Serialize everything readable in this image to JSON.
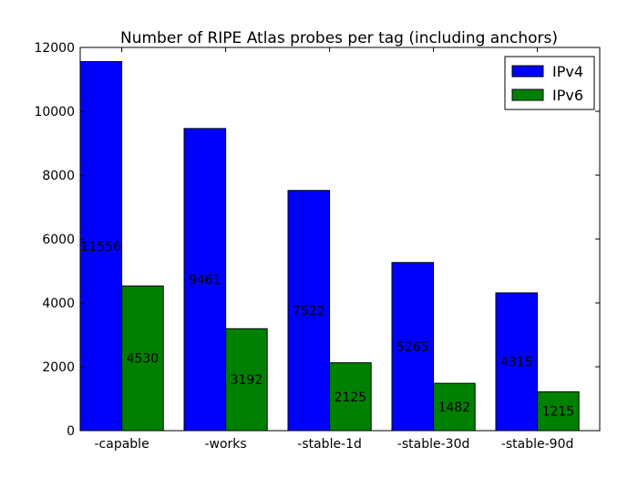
{
  "chart_data": {
    "type": "bar",
    "title": "Number of RIPE Atlas probes per tag (including anchors)",
    "xlabel": "",
    "ylabel": "",
    "categories": [
      "-capable",
      "-works",
      "-stable-1d",
      "-stable-30d",
      "-stable-90d"
    ],
    "series": [
      {
        "name": "IPv4",
        "color": "#0000ff",
        "values": [
          11556,
          9461,
          7522,
          5265,
          4315
        ]
      },
      {
        "name": "IPv6",
        "color": "#008000",
        "values": [
          4530,
          3192,
          2125,
          1482,
          1215
        ]
      }
    ],
    "ylim": [
      0,
      12000
    ],
    "yticks": [
      0,
      2000,
      4000,
      6000,
      8000,
      10000,
      12000
    ],
    "grid": false,
    "legend": "top-right"
  }
}
